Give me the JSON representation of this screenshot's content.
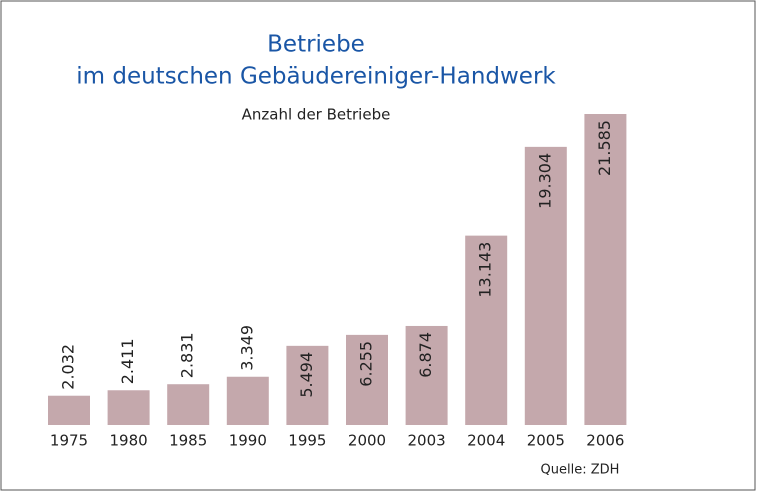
{
  "chart_data": {
    "type": "bar",
    "title": [
      "Betriebe",
      "im deutschen Gebäudereiniger-Handwerk"
    ],
    "subtitle": "Anzahl der Betriebe",
    "categories": [
      "1975",
      "1980",
      "1985",
      "1990",
      "1995",
      "2000",
      "2003",
      "2004",
      "2005",
      "2006"
    ],
    "values": [
      2032,
      2411,
      2831,
      3349,
      5494,
      6255,
      6874,
      13143,
      19304,
      21585
    ],
    "value_labels": [
      "2.032",
      "2.411",
      "2.831",
      "3.349",
      "5.494",
      "6.255",
      "6.874",
      "13.143",
      "19.304",
      "21.585"
    ],
    "color": "#c4a8ac",
    "source": "Quelle: ZDH"
  }
}
